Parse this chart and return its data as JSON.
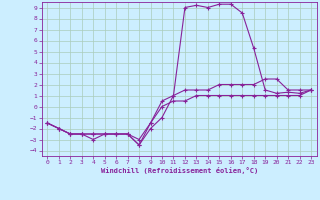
{
  "xlabel": "Windchill (Refroidissement éolien,°C)",
  "background_color": "#cceeff",
  "grid_color": "#aaccbb",
  "line_color": "#882299",
  "xlim": [
    -0.5,
    23.5
  ],
  "ylim": [
    -4.5,
    9.5
  ],
  "xticks": [
    0,
    1,
    2,
    3,
    4,
    5,
    6,
    7,
    8,
    9,
    10,
    11,
    12,
    13,
    14,
    15,
    16,
    17,
    18,
    19,
    20,
    21,
    22,
    23
  ],
  "yticks": [
    -4,
    -3,
    -2,
    -1,
    0,
    1,
    2,
    3,
    4,
    5,
    6,
    7,
    8,
    9
  ],
  "line1_x": [
    0,
    1,
    2,
    3,
    4,
    5,
    6,
    7,
    8,
    9,
    10,
    11,
    12,
    13,
    14,
    15,
    16,
    17,
    18,
    19,
    20,
    21,
    22,
    23
  ],
  "line1_y": [
    -1.5,
    -2.0,
    -2.5,
    -2.5,
    -3.0,
    -2.5,
    -2.5,
    -2.5,
    -3.5,
    -2.0,
    -1.0,
    1.0,
    9.0,
    9.2,
    9.0,
    9.3,
    9.3,
    8.5,
    5.3,
    1.5,
    1.2,
    1.3,
    1.2,
    1.5
  ],
  "line2_x": [
    0,
    1,
    2,
    3,
    4,
    5,
    6,
    7,
    8,
    9,
    10,
    11,
    12,
    13,
    14,
    15,
    16,
    17,
    18,
    19,
    20,
    21,
    22,
    23
  ],
  "line2_y": [
    -1.5,
    -2.0,
    -2.5,
    -2.5,
    -2.5,
    -2.5,
    -2.5,
    -2.5,
    -3.5,
    -1.5,
    0.5,
    1.0,
    1.5,
    1.5,
    1.5,
    2.0,
    2.0,
    2.0,
    2.0,
    2.5,
    2.5,
    1.5,
    1.5,
    1.5
  ],
  "line3_x": [
    0,
    1,
    2,
    3,
    4,
    5,
    6,
    7,
    8,
    9,
    10,
    11,
    12,
    13,
    14,
    15,
    16,
    17,
    18,
    19,
    20,
    21,
    22,
    23
  ],
  "line3_y": [
    -1.5,
    -2.0,
    -2.5,
    -2.5,
    -2.5,
    -2.5,
    -2.5,
    -2.5,
    -3.0,
    -1.5,
    0.0,
    0.5,
    0.5,
    1.0,
    1.0,
    1.0,
    1.0,
    1.0,
    1.0,
    1.0,
    1.0,
    1.0,
    1.0,
    1.5
  ]
}
